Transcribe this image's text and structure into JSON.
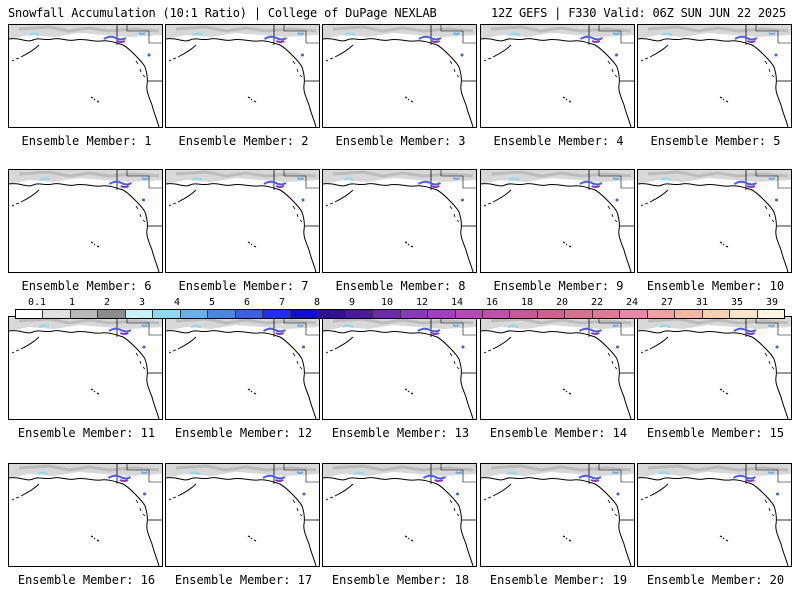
{
  "header": {
    "left_title": "Snowfall Accumulation (10:1 Ratio) | College of DuPage NEXLAB",
    "right_title": "12Z GEFS | F330 Valid: 06Z SUN JUN 22 2025"
  },
  "panels": [
    {
      "label": "Ensemble Member: 1"
    },
    {
      "label": "Ensemble Member: 2"
    },
    {
      "label": "Ensemble Member: 3"
    },
    {
      "label": "Ensemble Member: 4"
    },
    {
      "label": "Ensemble Member: 5"
    },
    {
      "label": "Ensemble Member: 6"
    },
    {
      "label": "Ensemble Member: 7"
    },
    {
      "label": "Ensemble Member: 8"
    },
    {
      "label": "Ensemble Member: 9"
    },
    {
      "label": "Ensemble Member: 10"
    },
    {
      "label": "Ensemble Member: 11"
    },
    {
      "label": "Ensemble Member: 12"
    },
    {
      "label": "Ensemble Member: 13"
    },
    {
      "label": "Ensemble Member: 14"
    },
    {
      "label": "Ensemble Member: 15"
    },
    {
      "label": "Ensemble Member: 16"
    },
    {
      "label": "Ensemble Member: 17"
    },
    {
      "label": "Ensemble Member: 18"
    },
    {
      "label": "Ensemble Member: 19"
    },
    {
      "label": "Ensemble Member: 20"
    }
  ],
  "colorbar": {
    "labels": [
      "0.1",
      "1",
      "2",
      "3",
      "4",
      "5",
      "6",
      "7",
      "8",
      "9",
      "10",
      "12",
      "14",
      "16",
      "18",
      "20",
      "22",
      "24",
      "27",
      "31",
      "35",
      "39"
    ],
    "colors": [
      "#ffffff",
      "#e0e0e0",
      "#b8b8b8",
      "#8c8c8c",
      "#c8f0f8",
      "#8fd8f0",
      "#6ab0e8",
      "#4a88e0",
      "#3a5fe0",
      "#2030e8",
      "#1010c8",
      "#301090",
      "#4a1a9a",
      "#6a2aaa",
      "#8a3ab8",
      "#a040c0",
      "#b848b8",
      "#c050a8",
      "#c85898",
      "#d06090",
      "#d87090",
      "#e07898",
      "#e888a8",
      "#f0a0a0",
      "#f4b8a0",
      "#f8d0b0",
      "#fce4c8",
      "#fff4e0"
    ]
  }
}
